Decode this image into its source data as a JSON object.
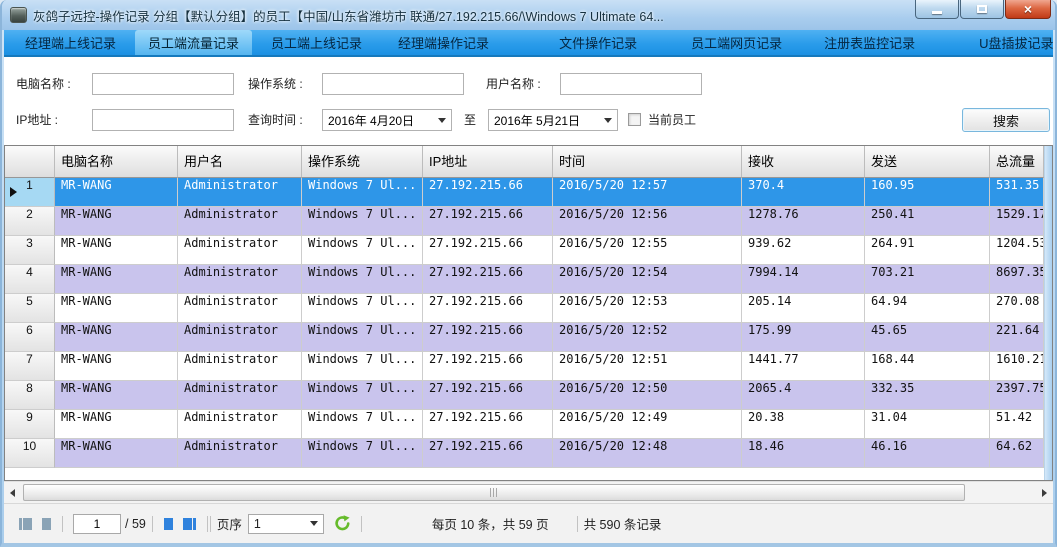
{
  "window": {
    "title": "灰鸽子远控-操作记录 分组【默认分组】的员工【中国/山东省潍坊市 联通/27.192.215.66/\\Windows 7 Ultimate 64..."
  },
  "tabs": {
    "selected_index": 1,
    "items": [
      "经理端上线记录",
      "员工端流量记录",
      "员工端上线记录",
      "经理端操作记录",
      "文件操作记录",
      "员工端网页记录",
      "注册表监控记录",
      "U盘插拔记录"
    ]
  },
  "filters": {
    "computer_name_label": "电脑名称 :",
    "computer_name_value": "",
    "os_label": "操作系统 :",
    "os_value": "",
    "user_name_label": "用户名称 :",
    "user_name_value": "",
    "ip_label": "IP地址 :",
    "ip_value": "",
    "query_time_label": "查询时间 :",
    "date_from": "2016年 4月20日",
    "to_label": "至",
    "date_to": "2016年 5月21日",
    "current_employee_label": "当前员工",
    "current_employee_checked": false,
    "search_button_label": "搜索"
  },
  "table": {
    "columns": [
      "",
      "电脑名称",
      "用户名",
      "操作系统",
      "IP地址",
      "时间",
      "接收",
      "发送",
      "总流量"
    ],
    "rows": [
      {
        "num": "1",
        "selected": true,
        "cells": [
          "MR-WANG",
          "Administrator",
          "Windows 7 Ul...",
          "27.192.215.66",
          "2016/5/20 12:57",
          "370.4",
          "160.95",
          "531.35"
        ]
      },
      {
        "num": "2",
        "selected": false,
        "cells": [
          "MR-WANG",
          "Administrator",
          "Windows 7 Ul...",
          "27.192.215.66",
          "2016/5/20 12:56",
          "1278.76",
          "250.41",
          "1529.17"
        ]
      },
      {
        "num": "3",
        "selected": false,
        "cells": [
          "MR-WANG",
          "Administrator",
          "Windows 7 Ul...",
          "27.192.215.66",
          "2016/5/20 12:55",
          "939.62",
          "264.91",
          "1204.53"
        ]
      },
      {
        "num": "4",
        "selected": false,
        "cells": [
          "MR-WANG",
          "Administrator",
          "Windows 7 Ul...",
          "27.192.215.66",
          "2016/5/20 12:54",
          "7994.14",
          "703.21",
          "8697.35"
        ]
      },
      {
        "num": "5",
        "selected": false,
        "cells": [
          "MR-WANG",
          "Administrator",
          "Windows 7 Ul...",
          "27.192.215.66",
          "2016/5/20 12:53",
          "205.14",
          "64.94",
          "270.08"
        ]
      },
      {
        "num": "6",
        "selected": false,
        "cells": [
          "MR-WANG",
          "Administrator",
          "Windows 7 Ul...",
          "27.192.215.66",
          "2016/5/20 12:52",
          "175.99",
          "45.65",
          "221.64"
        ]
      },
      {
        "num": "7",
        "selected": false,
        "cells": [
          "MR-WANG",
          "Administrator",
          "Windows 7 Ul...",
          "27.192.215.66",
          "2016/5/20 12:51",
          "1441.77",
          "168.44",
          "1610.21"
        ]
      },
      {
        "num": "8",
        "selected": false,
        "cells": [
          "MR-WANG",
          "Administrator",
          "Windows 7 Ul...",
          "27.192.215.66",
          "2016/5/20 12:50",
          "2065.4",
          "332.35",
          "2397.75"
        ]
      },
      {
        "num": "9",
        "selected": false,
        "cells": [
          "MR-WANG",
          "Administrator",
          "Windows 7 Ul...",
          "27.192.215.66",
          "2016/5/20 12:49",
          "20.38",
          "31.04",
          "51.42"
        ]
      },
      {
        "num": "10",
        "selected": false,
        "cells": [
          "MR-WANG",
          "Administrator",
          "Windows 7 Ul...",
          "27.192.215.66",
          "2016/5/20 12:48",
          "18.46",
          "46.16",
          "64.62"
        ]
      }
    ]
  },
  "pagination": {
    "current_page": "1",
    "total_pages": "/ 59",
    "page_order_label": "页序",
    "page_order_value": "1",
    "per_page_text": "每页 10 条，共 59 页",
    "total_records_text": "共 590 条记录"
  }
}
